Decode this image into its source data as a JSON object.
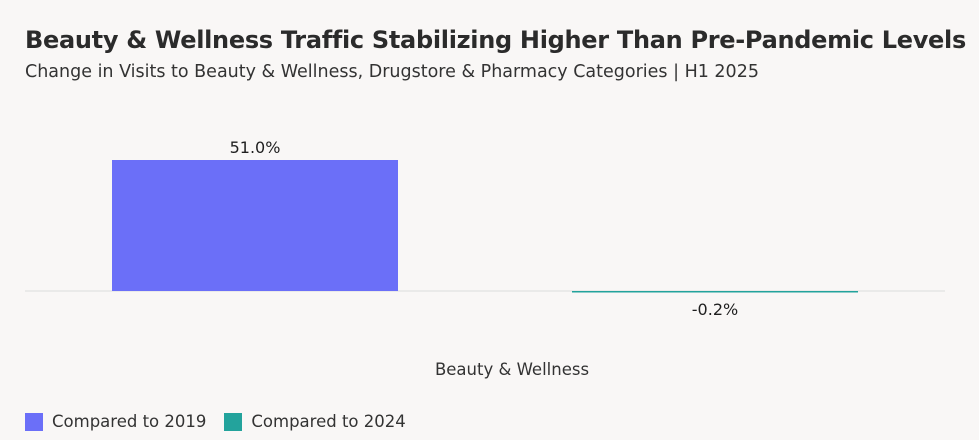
{
  "chart_data": {
    "type": "bar",
    "title": "Beauty & Wellness Traffic Stabilizing Higher Than Pre-Pandemic Levels",
    "subtitle": "Change in Visits to Beauty & Wellness, Drugstore & Pharmacy Categories | H1 2025",
    "categories": [
      "Beauty & Wellness"
    ],
    "series": [
      {
        "name": "Compared to 2019",
        "values": [
          51.0
        ],
        "labels": [
          "51.0%"
        ],
        "color": "#6b6ff8"
      },
      {
        "name": "Compared to 2024",
        "values": [
          -0.2
        ],
        "labels": [
          "-0.2%"
        ],
        "color": "#23a39c"
      }
    ],
    "xlabel": "",
    "ylabel": "",
    "ylim": [
      -0.2,
      51.0
    ],
    "unit": "%",
    "legend_position": "bottom-left"
  }
}
